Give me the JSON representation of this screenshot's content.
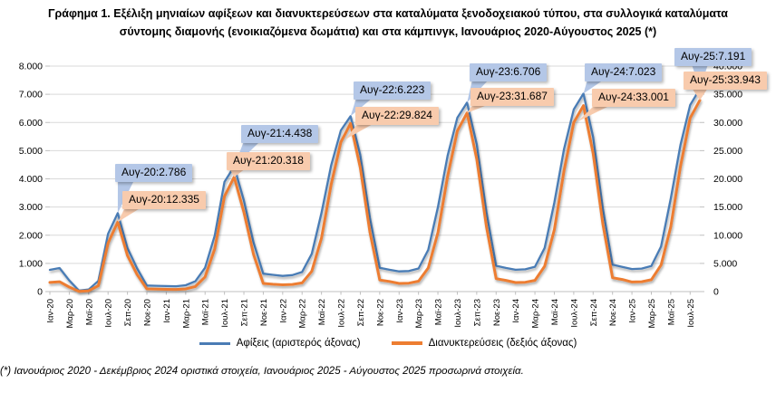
{
  "header": {
    "title_line1": "Γράφημα 1. Εξέλιξη μηνιαίων αφίξεων και διανυκτερεύσεων στα καταλύματα ξενοδοχειακού τύπου, στα συλλογικά καταλύματα",
    "title_line2": "σύντομης διαμονής (ενοικιαζόμενα δωμάτια) και στα κάμπινγκ, Ιανουάριος 2020-Αύγουστος  2025 (*)"
  },
  "footnote": {
    "text": "(*) Ιανουάριος 2020 - Δεκέμβριος 2024 οριστικά στοιχεία, Ιανουάριος 2025 - Αύγουστος  2025 προσωρινά στοιχεία."
  },
  "chart_data": {
    "type": "line",
    "grid": true,
    "legend_position": "bottom",
    "grid_color": "#D9D9D9",
    "axis_color": "#BFBFBF",
    "left_axis": {
      "min": 0,
      "max": 8000,
      "step": 1000,
      "tick_labels": [
        "0",
        "1.000",
        "2.000",
        "3.000",
        "4.000",
        "5.000",
        "6.000",
        "7.000",
        "8.000"
      ]
    },
    "right_axis": {
      "min": 0,
      "max": 40000,
      "step": 5000,
      "tick_labels": [
        "0",
        "5.000",
        "10.000",
        "15.000",
        "20.000",
        "25.000",
        "30.000",
        "35.000",
        "40.000"
      ]
    },
    "x_tick_labels": [
      "Ιαν-20",
      "Μαρ-20",
      "Μαϊ-20",
      "Ιουλ-20",
      "Σεπ-20",
      "Νοε-20",
      "Ιαν-21",
      "Μαρ-21",
      "Μαϊ-21",
      "Ιουλ-21",
      "Σεπ-21",
      "Νοε-21",
      "Ιαν-22",
      "Μαρ-22",
      "Μαϊ-22",
      "Ιουλ-22",
      "Σεπ-22",
      "Νοε-22",
      "Ιαν-23",
      "Μαρ-23",
      "Μαϊ-23",
      "Ιουλ-23",
      "Σεπ-23",
      "Νοε-23",
      "Ιαν-24",
      "Μαρ-24",
      "Μαϊ-24",
      "Ιουλ-24",
      "Σεπ-24",
      "Νοε-24",
      "Ιαν-25",
      "Μαρ-25",
      "Μαϊ-25",
      "Ιουλ-25"
    ],
    "series": [
      {
        "name": "Αφίξεις (αριστερός άξονας)",
        "axis": "left",
        "color": "#4A7CB5",
        "values": [
          770,
          835,
          395,
          35,
          75,
          380,
          2050,
          2786,
          1545,
          820,
          215,
          205,
          195,
          190,
          225,
          365,
          845,
          1990,
          3890,
          4438,
          3240,
          1745,
          635,
          595,
          555,
          585,
          695,
          1340,
          2790,
          4480,
          5720,
          6223,
          4850,
          2610,
          845,
          775,
          715,
          730,
          820,
          1480,
          3000,
          4830,
          6170,
          6706,
          5230,
          2820,
          915,
          840,
          775,
          790,
          880,
          1550,
          3160,
          5060,
          6460,
          7023,
          5480,
          2950,
          955,
          875,
          800,
          815,
          905,
          1600,
          3300,
          5200,
          6620,
          7191
        ]
      },
      {
        "name": "Διανυκτερεύσεις (δεξιός άξονας)",
        "axis": "right",
        "color": "#ED7D31",
        "values": [
          1620,
          1750,
          800,
          55,
          140,
          1050,
          8600,
          12335,
          6400,
          3000,
          480,
          440,
          400,
          390,
          470,
          900,
          2600,
          7600,
          16900,
          20318,
          14100,
          6600,
          1450,
          1300,
          1200,
          1270,
          1550,
          3600,
          9500,
          19000,
          26500,
          29824,
          22000,
          10500,
          2050,
          1800,
          1450,
          1500,
          1850,
          4200,
          10500,
          20500,
          28500,
          31687,
          23500,
          11500,
          2300,
          2000,
          1600,
          1650,
          2000,
          4500,
          11000,
          21500,
          30000,
          33001,
          24500,
          12000,
          2450,
          2150,
          1700,
          1750,
          2100,
          4700,
          11500,
          22200,
          30800,
          33943
        ]
      }
    ],
    "annotation_colors": {
      "arrivals_fill": "#B4C7E7",
      "overnights_fill": "#F8CBAD"
    },
    "annotations": [
      {
        "label": "Αυγ-20:2.786",
        "series": 0,
        "month_index": 7,
        "value": 2786
      },
      {
        "label": "Αυγ-21:4.438",
        "series": 0,
        "month_index": 19,
        "value": 4438
      },
      {
        "label": "Αυγ-22:6.223",
        "series": 0,
        "month_index": 31,
        "value": 6223
      },
      {
        "label": "Αυγ-23:6.706",
        "series": 0,
        "month_index": 43,
        "value": 6706
      },
      {
        "label": "Αυγ-24:7.023",
        "series": 0,
        "month_index": 55,
        "value": 7023
      },
      {
        "label": "Αυγ-25:7.191",
        "series": 0,
        "month_index": 67,
        "value": 7191
      },
      {
        "label": "Αυγ-20:12.335",
        "series": 1,
        "month_index": 7,
        "value": 12335
      },
      {
        "label": "Αυγ-21:20.318",
        "series": 1,
        "month_index": 19,
        "value": 20318
      },
      {
        "label": "Αυγ-22:29.824",
        "series": 1,
        "month_index": 31,
        "value": 29824
      },
      {
        "label": "Αυγ-23:31.687",
        "series": 1,
        "month_index": 43,
        "value": 31687
      },
      {
        "label": "Αυγ-24:33.001",
        "series": 1,
        "month_index": 55,
        "value": 33001
      },
      {
        "label": "Αυγ-25:33.943",
        "series": 1,
        "month_index": 67,
        "value": 33943
      }
    ]
  }
}
